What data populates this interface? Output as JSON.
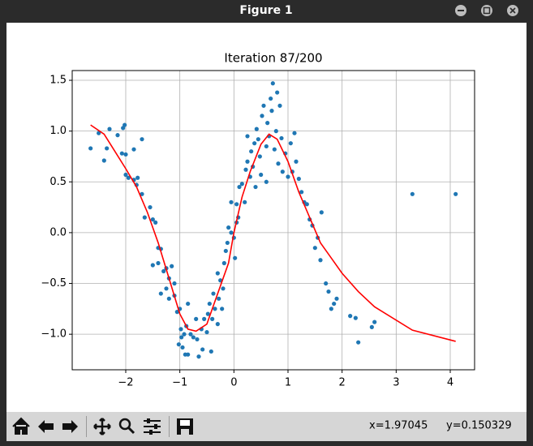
{
  "window": {
    "title": "Figure 1"
  },
  "toolbar": {
    "x_readout": "x=1.97045",
    "y_readout": "y=0.150329"
  },
  "chart_data": {
    "type": "scatter",
    "title": "Iteration 87/200",
    "xlim": [
      -2.99,
      4.45
    ],
    "ylim": [
      -1.35,
      1.596
    ],
    "grid": true,
    "xticks": [
      {
        "value": -2,
        "label": "−2"
      },
      {
        "value": -1,
        "label": "−1"
      },
      0,
      1,
      2,
      3,
      4
    ],
    "yticks": [
      {
        "value": -1,
        "label": "−1.0"
      },
      {
        "value": -0.5,
        "label": "−0.5"
      },
      {
        "value": 0,
        "label": "0.0"
      },
      0.5,
      {
        "value": 1,
        "label": "1.0"
      },
      1.5
    ],
    "series": [
      {
        "type": "scatter",
        "color": "#1f77b4",
        "x": [
          -2.65,
          -2.5,
          -2.4,
          -2.35,
          -2.3,
          -2.15,
          -2.05,
          -2.02,
          -2.07,
          -2.0,
          -1.85,
          -1.7,
          -2.0,
          -1.95,
          -1.85,
          -1.78,
          -1.8,
          -1.7,
          -1.65,
          -1.55,
          -1.5,
          -1.45,
          -1.4,
          -1.35,
          -1.5,
          -1.4,
          -1.3,
          -1.25,
          -1.2,
          -1.15,
          -1.1,
          -1.35,
          -1.25,
          -1.2,
          -1.1,
          -1.05,
          -1.0,
          -0.98,
          -0.97,
          -1.02,
          -0.95,
          -0.9,
          -0.85,
          -0.92,
          -0.88,
          -0.85,
          -0.8,
          -0.75,
          -0.7,
          -0.68,
          -0.65,
          -0.6,
          -0.58,
          -0.55,
          -0.5,
          -0.48,
          -0.45,
          -0.42,
          -0.4,
          -0.38,
          -0.35,
          -0.3,
          -0.28,
          -0.25,
          -0.2,
          -0.18,
          -0.15,
          -0.12,
          -0.1,
          -0.05,
          0.0,
          0.02,
          0.05,
          0.05,
          0.1,
          0.15,
          0.2,
          0.22,
          0.25,
          0.3,
          0.32,
          0.35,
          0.38,
          0.4,
          0.42,
          0.45,
          0.48,
          0.5,
          0.52,
          0.55,
          0.6,
          0.62,
          0.65,
          0.68,
          0.7,
          0.72,
          0.75,
          0.78,
          0.8,
          0.82,
          0.85,
          0.88,
          0.9,
          0.95,
          1.0,
          1.05,
          1.08,
          1.12,
          1.15,
          1.2,
          1.25,
          1.3,
          1.35,
          1.4,
          1.45,
          1.5,
          1.55,
          1.62,
          1.6,
          1.7,
          1.75,
          1.8,
          1.85,
          1.9,
          2.15,
          2.25,
          2.3,
          2.55,
          2.6,
          3.3,
          4.1,
          -0.3,
          -0.05,
          0.08,
          -0.22,
          0.25,
          0.6
        ],
        "y": [
          0.83,
          0.98,
          0.71,
          0.83,
          1.02,
          0.96,
          1.03,
          1.06,
          0.78,
          0.77,
          0.82,
          0.92,
          0.57,
          0.54,
          0.52,
          0.54,
          0.47,
          0.38,
          0.15,
          0.25,
          0.13,
          0.1,
          -0.15,
          -0.16,
          -0.32,
          -0.3,
          -0.38,
          -0.35,
          -0.45,
          -0.33,
          -0.5,
          -0.6,
          -0.55,
          -0.65,
          -0.62,
          -0.78,
          -0.75,
          -0.95,
          -1.03,
          -1.1,
          -1.13,
          -1.2,
          -1.2,
          -1.0,
          -0.92,
          -0.7,
          -1.0,
          -1.03,
          -0.85,
          -1.05,
          -1.22,
          -0.95,
          -1.15,
          -0.85,
          -0.98,
          -0.8,
          -0.7,
          -1.17,
          -0.85,
          -0.6,
          -0.75,
          -0.9,
          -0.65,
          -0.47,
          -0.55,
          -0.3,
          -0.18,
          -0.1,
          0.05,
          0.0,
          -0.05,
          -0.25,
          0.1,
          0.28,
          0.45,
          0.48,
          0.3,
          0.62,
          0.7,
          0.55,
          0.8,
          0.65,
          0.88,
          0.45,
          1.02,
          0.92,
          0.75,
          0.57,
          1.15,
          1.25,
          0.85,
          1.08,
          0.95,
          1.32,
          1.2,
          1.47,
          0.82,
          1.0,
          1.38,
          0.68,
          1.25,
          0.93,
          0.6,
          0.78,
          0.55,
          0.88,
          0.6,
          0.98,
          0.7,
          0.53,
          0.4,
          0.3,
          0.28,
          0.13,
          0.07,
          -0.15,
          -0.05,
          0.2,
          -0.27,
          -0.5,
          -0.58,
          -0.75,
          -0.7,
          -0.65,
          -0.82,
          -0.84,
          -1.08,
          -0.93,
          -0.88,
          0.38,
          0.38,
          -0.4,
          0.3,
          0.15,
          -0.75,
          0.95,
          0.5
        ]
      },
      {
        "type": "line",
        "color": "#ff0000",
        "x": [
          -2.65,
          -2.4,
          -2.2,
          -2.0,
          -1.8,
          -1.6,
          -1.4,
          -1.2,
          -1.0,
          -0.85,
          -0.7,
          -0.5,
          -0.3,
          -0.1,
          0.0,
          0.15,
          0.3,
          0.5,
          0.65,
          0.8,
          1.0,
          1.2,
          1.4,
          1.6,
          1.8,
          2.0,
          2.3,
          2.6,
          3.3,
          4.1
        ],
        "y": [
          1.06,
          0.97,
          0.8,
          0.63,
          0.45,
          0.2,
          -0.1,
          -0.45,
          -0.8,
          -0.95,
          -0.97,
          -0.9,
          -0.6,
          -0.3,
          0.0,
          0.35,
          0.6,
          0.87,
          0.97,
          0.92,
          0.7,
          0.4,
          0.15,
          -0.1,
          -0.25,
          -0.4,
          -0.58,
          -0.73,
          -0.96,
          -1.07
        ]
      }
    ]
  }
}
